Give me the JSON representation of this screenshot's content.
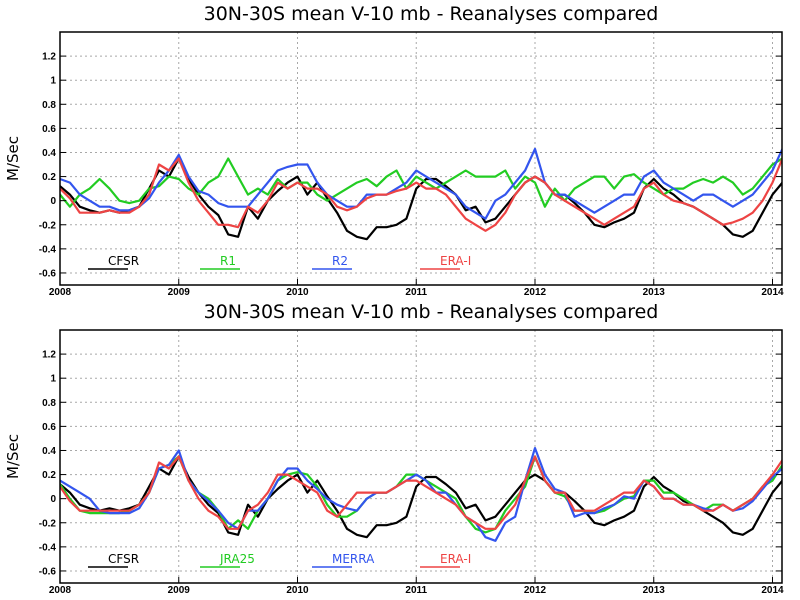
{
  "chart_data": [
    {
      "type": "line",
      "title": "30N-30S mean V-10 mb - Reanalyses compared",
      "xlabel": "",
      "ylabel": "M/Sec",
      "xlim": [
        2008,
        2014.08
      ],
      "ylim": [
        -0.7,
        1.4
      ],
      "x_ticks": [
        "2008",
        "2009",
        "2010",
        "2011",
        "2012",
        "2013",
        "2014"
      ],
      "y_ticks": [
        "-0.6",
        "-0.4",
        "-0.2",
        "0",
        "0.2",
        "0.4",
        "0.6",
        "0.8",
        "1",
        "1.2"
      ],
      "grid": true,
      "legend_position": "bottom-inside",
      "series": [
        {
          "name": "CFSR",
          "color": "#000000",
          "values": [
            0.12,
            0.05,
            -0.05,
            -0.08,
            -0.1,
            -0.08,
            -0.1,
            -0.08,
            -0.05,
            0.1,
            0.25,
            0.2,
            0.35,
            0.18,
            0.05,
            -0.05,
            -0.12,
            -0.28,
            -0.3,
            -0.05,
            -0.15,
            0.0,
            0.08,
            0.15,
            0.2,
            0.05,
            0.15,
            0.02,
            -0.1,
            -0.25,
            -0.3,
            -0.32,
            -0.22,
            -0.22,
            -0.2,
            -0.15,
            0.1,
            0.18,
            0.18,
            0.12,
            0.05,
            -0.08,
            -0.05,
            -0.18,
            -0.15,
            -0.05,
            0.05,
            0.15,
            0.2,
            0.15,
            0.05,
            0.05,
            -0.02,
            -0.1,
            -0.2,
            -0.22,
            -0.18,
            -0.15,
            -0.1,
            0.1,
            0.18,
            0.1,
            0.05,
            -0.02,
            -0.05,
            -0.1,
            -0.15,
            -0.2,
            -0.28,
            -0.3,
            -0.25,
            -0.1,
            0.05,
            0.15,
            0.2,
            0.15
          ]
        },
        {
          "name": "R1",
          "color": "#22cc22",
          "values": [
            0.05,
            -0.05,
            0.05,
            0.1,
            0.18,
            0.1,
            0.0,
            -0.02,
            0.0,
            0.1,
            0.12,
            0.2,
            0.18,
            0.1,
            0.05,
            0.15,
            0.2,
            0.35,
            0.2,
            0.05,
            0.1,
            0.05,
            0.18,
            0.1,
            0.15,
            0.15,
            0.05,
            0.0,
            0.05,
            0.1,
            0.15,
            0.18,
            0.12,
            0.2,
            0.25,
            0.1,
            0.2,
            0.15,
            0.1,
            0.15,
            0.2,
            0.25,
            0.2,
            0.2,
            0.2,
            0.25,
            0.1,
            0.2,
            0.15,
            -0.05,
            0.1,
            0.0,
            0.1,
            0.15,
            0.2,
            0.2,
            0.1,
            0.2,
            0.22,
            0.15,
            0.1,
            0.05,
            0.1,
            0.1,
            0.15,
            0.18,
            0.15,
            0.2,
            0.15,
            0.05,
            0.1,
            0.2,
            0.3,
            0.35,
            0.3,
            0.22
          ]
        },
        {
          "name": "R2",
          "color": "#3355ee",
          "values": [
            0.18,
            0.15,
            0.05,
            0.0,
            -0.05,
            -0.05,
            -0.08,
            -0.08,
            -0.05,
            0.02,
            0.15,
            0.25,
            0.38,
            0.2,
            0.08,
            0.05,
            -0.02,
            -0.05,
            -0.05,
            -0.05,
            0.05,
            0.15,
            0.25,
            0.28,
            0.3,
            0.3,
            0.15,
            0.05,
            0.0,
            -0.05,
            -0.05,
            0.05,
            0.05,
            0.05,
            0.1,
            0.15,
            0.25,
            0.2,
            0.15,
            0.1,
            0.05,
            -0.05,
            -0.1,
            -0.15,
            0.0,
            0.05,
            0.15,
            0.25,
            0.43,
            0.15,
            0.05,
            0.05,
            0.0,
            -0.05,
            -0.1,
            -0.05,
            0.0,
            0.05,
            0.05,
            0.2,
            0.25,
            0.15,
            0.1,
            0.05,
            0.0,
            0.05,
            0.05,
            0.0,
            -0.05,
            0.0,
            0.05,
            0.15,
            0.25,
            0.43,
            0.48,
            0.35
          ]
        },
        {
          "name": "ERA-I",
          "color": "#ee4444",
          "values": [
            0.1,
            0.02,
            -0.1,
            -0.1,
            -0.1,
            -0.08,
            -0.1,
            -0.1,
            -0.05,
            0.05,
            0.3,
            0.25,
            0.35,
            0.15,
            0.0,
            -0.1,
            -0.2,
            -0.2,
            -0.22,
            -0.05,
            -0.1,
            0.0,
            0.15,
            0.1,
            0.15,
            0.1,
            0.1,
            0.05,
            -0.05,
            -0.08,
            -0.05,
            0.02,
            0.05,
            0.05,
            0.08,
            0.1,
            0.15,
            0.1,
            0.1,
            0.05,
            -0.05,
            -0.15,
            -0.2,
            -0.25,
            -0.2,
            -0.1,
            0.05,
            0.15,
            0.2,
            0.15,
            0.05,
            0.0,
            -0.05,
            -0.1,
            -0.15,
            -0.2,
            -0.15,
            -0.1,
            -0.05,
            0.1,
            0.15,
            0.05,
            0.0,
            -0.02,
            -0.05,
            -0.1,
            -0.15,
            -0.2,
            -0.18,
            -0.15,
            -0.1,
            0.0,
            0.15,
            0.35,
            0.3,
            0.2
          ]
        }
      ]
    },
    {
      "type": "line",
      "title": "30N-30S mean V-10 mb - Reanalyses compared",
      "xlabel": "",
      "ylabel": "M/Sec",
      "xlim": [
        2008,
        2014.08
      ],
      "ylim": [
        -0.7,
        1.4
      ],
      "x_ticks": [
        "2008",
        "2009",
        "2010",
        "2011",
        "2012",
        "2013",
        "2014"
      ],
      "y_ticks": [
        "-0.6",
        "-0.4",
        "-0.2",
        "0",
        "0.2",
        "0.4",
        "0.6",
        "0.8",
        "1",
        "1.2"
      ],
      "grid": true,
      "legend_position": "bottom-inside",
      "series": [
        {
          "name": "CFSR",
          "color": "#000000",
          "values": [
            0.12,
            0.05,
            -0.05,
            -0.08,
            -0.1,
            -0.08,
            -0.1,
            -0.08,
            -0.05,
            0.1,
            0.25,
            0.2,
            0.35,
            0.18,
            0.05,
            -0.05,
            -0.12,
            -0.28,
            -0.3,
            -0.05,
            -0.15,
            0.0,
            0.08,
            0.15,
            0.2,
            0.05,
            0.15,
            0.02,
            -0.1,
            -0.25,
            -0.3,
            -0.32,
            -0.22,
            -0.22,
            -0.2,
            -0.15,
            0.1,
            0.18,
            0.18,
            0.12,
            0.05,
            -0.08,
            -0.05,
            -0.18,
            -0.15,
            -0.05,
            0.05,
            0.15,
            0.2,
            0.15,
            0.05,
            0.05,
            -0.02,
            -0.1,
            -0.2,
            -0.22,
            -0.18,
            -0.15,
            -0.1,
            0.1,
            0.18,
            0.1,
            0.05,
            -0.02,
            -0.05,
            -0.1,
            -0.15,
            -0.2,
            -0.28,
            -0.3,
            -0.25,
            -0.1,
            0.05,
            0.15,
            0.2,
            0.15
          ]
        },
        {
          "name": "JRA25",
          "color": "#22cc22",
          "values": [
            0.12,
            0.0,
            -0.1,
            -0.12,
            -0.12,
            -0.12,
            -0.12,
            -0.1,
            -0.05,
            0.05,
            0.25,
            0.28,
            0.35,
            0.15,
            0.05,
            0.0,
            -0.1,
            -0.25,
            -0.18,
            -0.25,
            -0.1,
            0.0,
            0.15,
            0.2,
            0.22,
            0.2,
            0.1,
            -0.05,
            -0.15,
            -0.15,
            -0.1,
            0.0,
            0.05,
            0.05,
            0.1,
            0.2,
            0.2,
            0.15,
            0.1,
            0.05,
            0.0,
            -0.15,
            -0.25,
            -0.28,
            -0.25,
            -0.1,
            0.0,
            0.1,
            0.35,
            0.15,
            0.05,
            0.02,
            -0.1,
            -0.1,
            -0.12,
            -0.1,
            -0.05,
            0.0,
            0.02,
            0.15,
            0.15,
            0.05,
            0.05,
            0.0,
            -0.05,
            -0.1,
            -0.05,
            -0.05,
            -0.1,
            -0.05,
            0.0,
            0.1,
            0.15,
            0.28,
            0.28,
            0.2
          ]
        },
        {
          "name": "MERRA",
          "color": "#3355ee",
          "values": [
            0.15,
            0.1,
            0.05,
            0.0,
            -0.1,
            -0.12,
            -0.12,
            -0.12,
            -0.08,
            0.05,
            0.25,
            0.28,
            0.4,
            0.15,
            0.05,
            -0.02,
            -0.1,
            -0.2,
            -0.25,
            -0.1,
            -0.1,
            0.0,
            0.15,
            0.25,
            0.25,
            0.15,
            0.08,
            0.0,
            -0.05,
            -0.08,
            -0.1,
            0.0,
            0.05,
            0.05,
            0.1,
            0.15,
            0.2,
            0.15,
            0.05,
            0.05,
            -0.05,
            -0.15,
            -0.2,
            -0.32,
            -0.35,
            -0.2,
            -0.15,
            0.15,
            0.42,
            0.2,
            0.08,
            0.05,
            -0.15,
            -0.12,
            -0.12,
            -0.08,
            -0.05,
            0.02,
            0.0,
            0.15,
            0.1,
            0.0,
            0.0,
            -0.05,
            -0.05,
            -0.08,
            -0.1,
            -0.05,
            -0.1,
            -0.08,
            -0.02,
            0.08,
            0.18,
            0.25,
            0.3,
            0.2
          ]
        },
        {
          "name": "ERA-I",
          "color": "#ee4444",
          "values": [
            0.1,
            -0.02,
            -0.1,
            -0.1,
            -0.1,
            -0.1,
            -0.1,
            -0.1,
            -0.05,
            0.05,
            0.3,
            0.25,
            0.35,
            0.15,
            0.0,
            -0.1,
            -0.15,
            -0.25,
            -0.25,
            -0.1,
            -0.05,
            0.05,
            0.2,
            0.2,
            0.15,
            0.1,
            0.05,
            -0.1,
            -0.15,
            -0.05,
            0.05,
            0.05,
            0.05,
            0.05,
            0.1,
            0.15,
            0.15,
            0.1,
            0.05,
            0.0,
            -0.05,
            -0.15,
            -0.2,
            -0.25,
            -0.25,
            -0.15,
            -0.05,
            0.15,
            0.35,
            0.15,
            0.05,
            0.05,
            -0.1,
            -0.1,
            -0.1,
            -0.05,
            0.0,
            0.05,
            0.05,
            0.15,
            0.1,
            0.0,
            0.0,
            -0.05,
            -0.05,
            -0.1,
            -0.1,
            -0.05,
            -0.1,
            -0.05,
            0.0,
            0.1,
            0.2,
            0.32,
            0.32,
            0.2
          ]
        }
      ]
    }
  ]
}
